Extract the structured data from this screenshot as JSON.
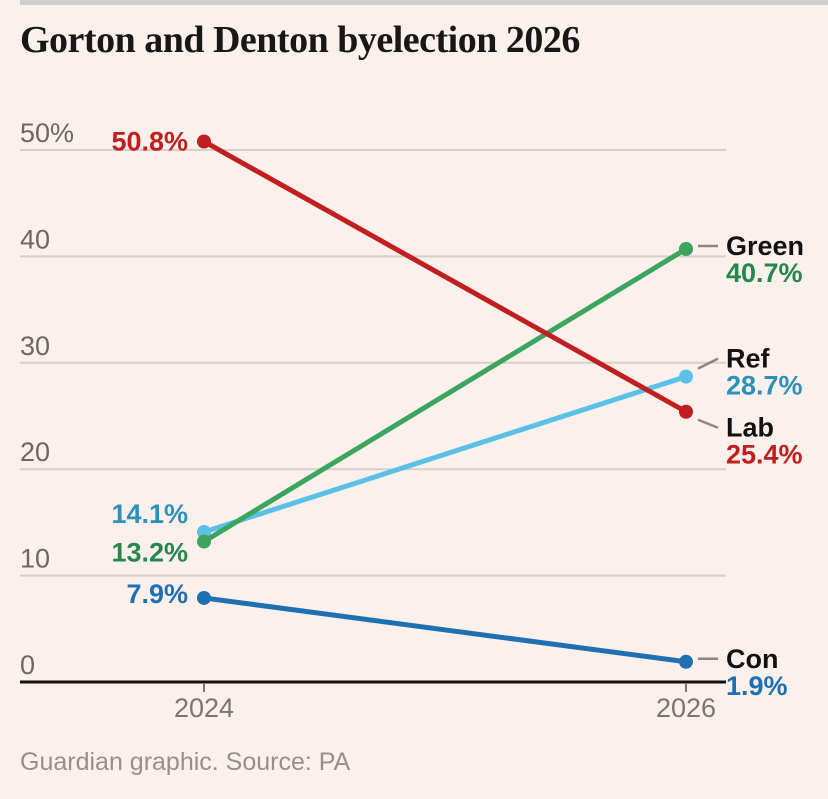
{
  "header": {
    "title": "Gorton and Denton byelection 2026"
  },
  "footer": {
    "source": "Guardian graphic. Source: PA"
  },
  "chart_data": {
    "type": "line",
    "title": "Gorton and Denton byelection 2026",
    "x_categories": [
      "2024",
      "2026"
    ],
    "series": [
      {
        "name": "Ref",
        "values": [
          14.1,
          28.7
        ],
        "line_color": "#5ac0e6",
        "text_color": "#2b91bb",
        "start_label": "14.1%",
        "end_label": "28.7%",
        "start_label_dy": -18,
        "end_label_dy": -18
      },
      {
        "name": "Green",
        "values": [
          13.2,
          40.7
        ],
        "line_color": "#3ba55f",
        "text_color": "#24874c",
        "start_label": "13.2%",
        "end_label": "40.7%",
        "start_label_dy": 11,
        "end_label_dy": -3
      },
      {
        "name": "Lab",
        "values": [
          50.8,
          25.4
        ],
        "line_color": "#c11f1f",
        "text_color": "#c11f1f",
        "start_label": "50.8%",
        "end_label": "25.4%",
        "start_label_dy": 0,
        "end_label_dy": 16
      },
      {
        "name": "Con",
        "values": [
          7.9,
          1.9
        ],
        "line_color": "#1f70b2",
        "text_color": "#1f70b2",
        "start_label": "7.9%",
        "end_label": "1.9%",
        "start_label_dy": -4,
        "end_label_dy": -3
      }
    ],
    "ylim": [
      0,
      50
    ],
    "yticks": [
      0,
      10,
      20,
      30,
      40,
      50
    ],
    "ytick_labels": [
      "0",
      "10",
      "20",
      "30",
      "40",
      "50%"
    ],
    "grid": true,
    "legend_position": "right-of-line-ends",
    "colors": {
      "grid": "#d9cec8",
      "axis": "#121212",
      "ytick_label": "#6d6762",
      "xtick_label": "#7b756f",
      "name_label": "#121212",
      "connector": "#8b8680"
    }
  }
}
